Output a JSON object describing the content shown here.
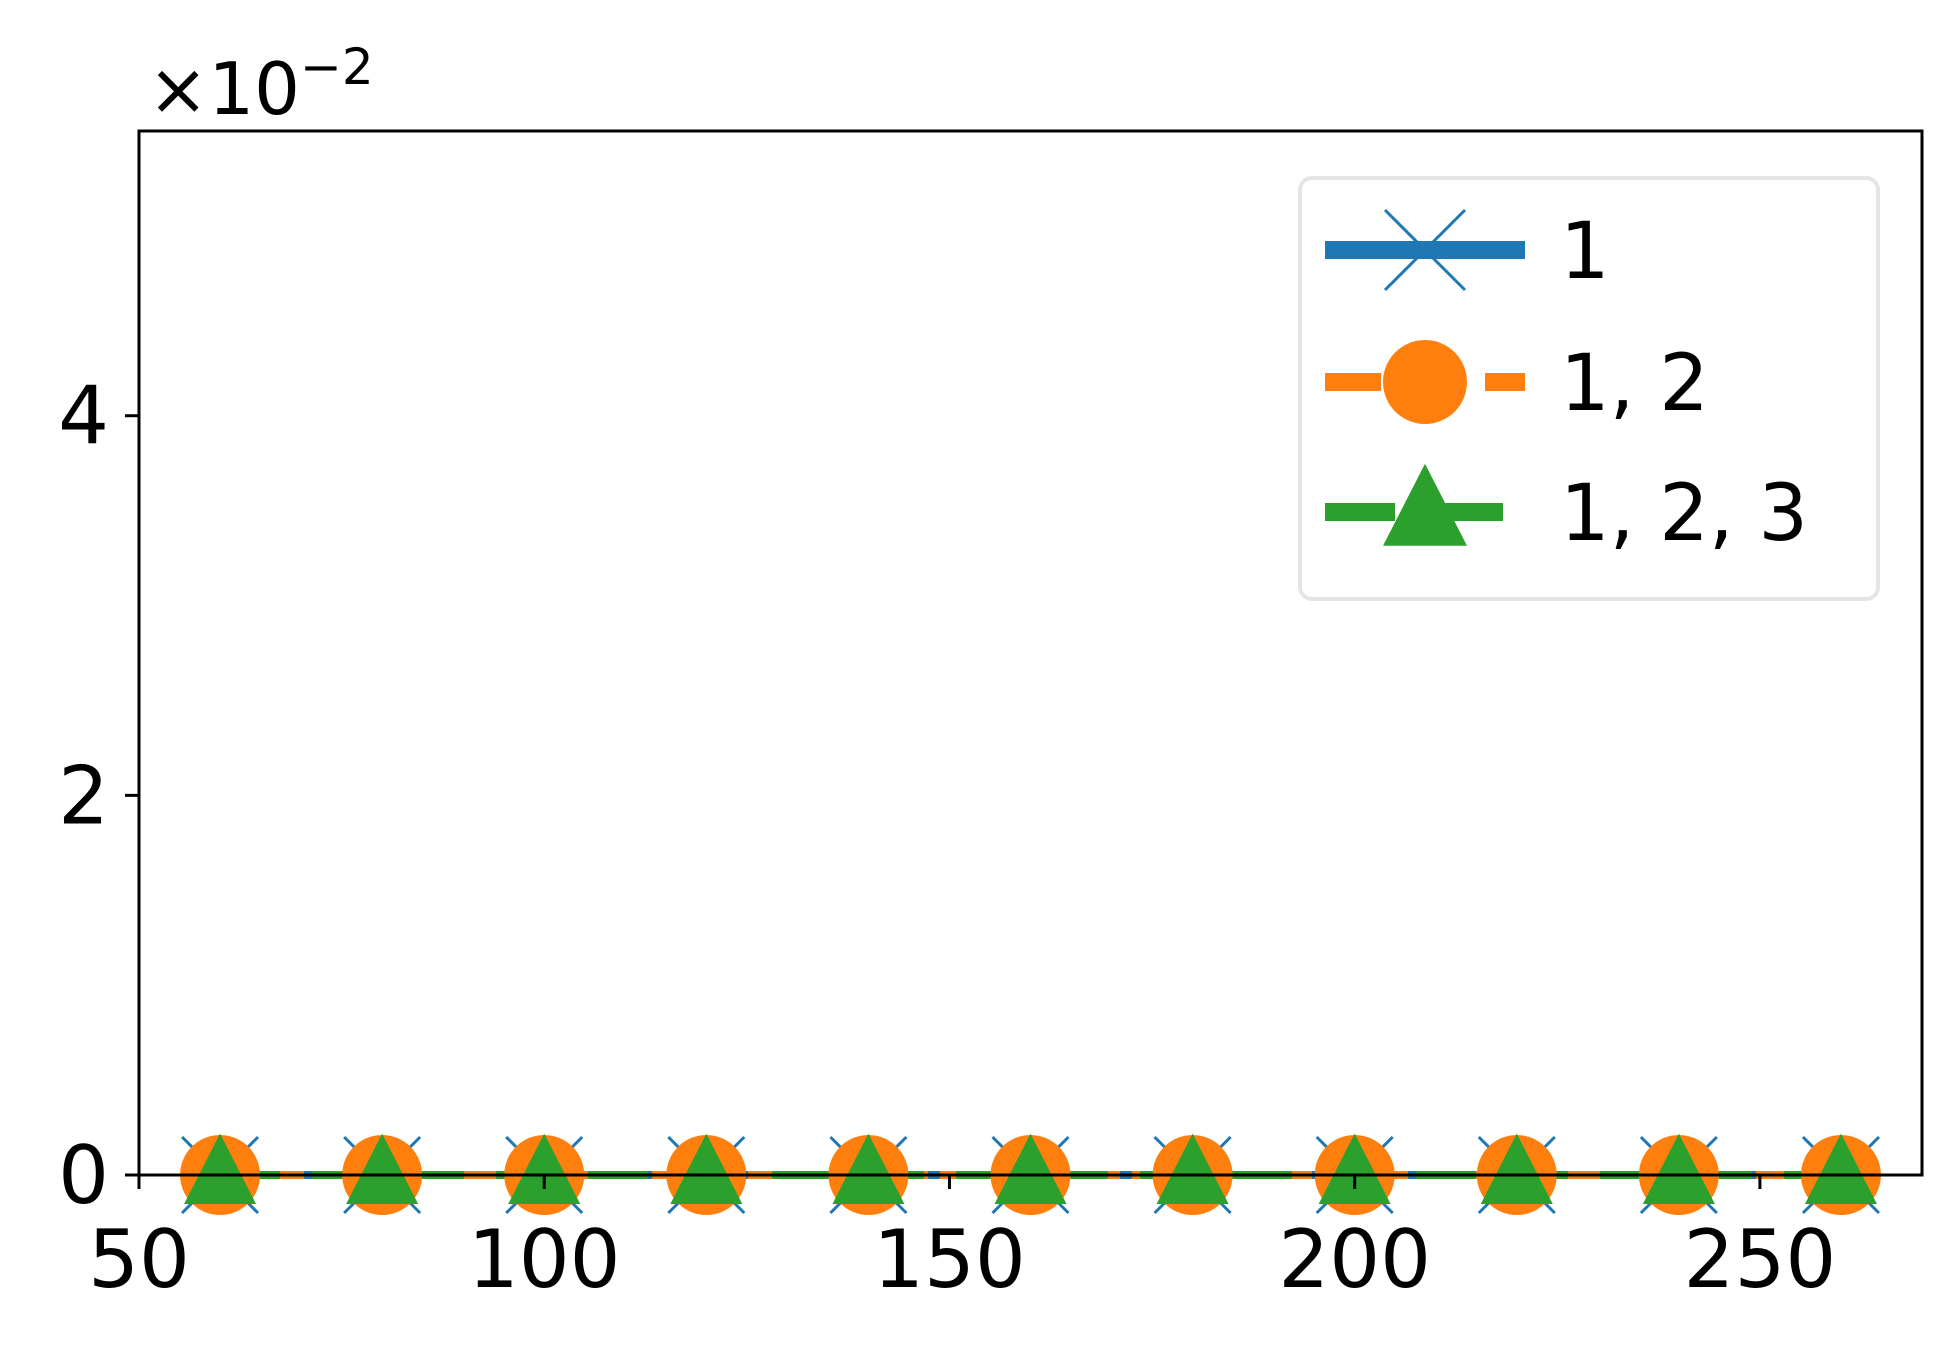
{
  "chart_data": {
    "type": "line",
    "title": "",
    "xlabel": "",
    "ylabel": "",
    "x": [
      60,
      80,
      100,
      120,
      140,
      160,
      180,
      200,
      220,
      240,
      260
    ],
    "xlim": [
      50,
      270
    ],
    "ylim": [
      0,
      5.5
    ],
    "xticks": [
      50,
      100,
      150,
      200,
      250
    ],
    "yticks": [
      0,
      2,
      4
    ],
    "y_offset_label": "×10",
    "y_offset_exponent": "−2",
    "grid": false,
    "legend_position": "top-right",
    "series": [
      {
        "name": "1",
        "color": "#1f77b4",
        "marker": "x-icon",
        "values": [
          0.0,
          0.0,
          0.0,
          0.0,
          0.0,
          0.0,
          0.0,
          0.0,
          0.0,
          0.0,
          0.0
        ]
      },
      {
        "name": "1, 2",
        "color": "#ff7f0e",
        "marker": "circle-icon",
        "values": [
          0.0,
          0.0,
          0.0,
          0.0,
          0.0,
          0.0,
          0.0,
          0.0,
          0.0,
          0.0,
          0.0
        ]
      },
      {
        "name": "1, 2, 3",
        "color": "#2ca02c",
        "marker": "triangle-icon",
        "values": [
          0.0,
          0.0,
          0.0,
          0.0,
          0.0,
          0.0,
          0.0,
          0.0,
          0.0,
          0.0,
          0.0
        ]
      }
    ]
  }
}
